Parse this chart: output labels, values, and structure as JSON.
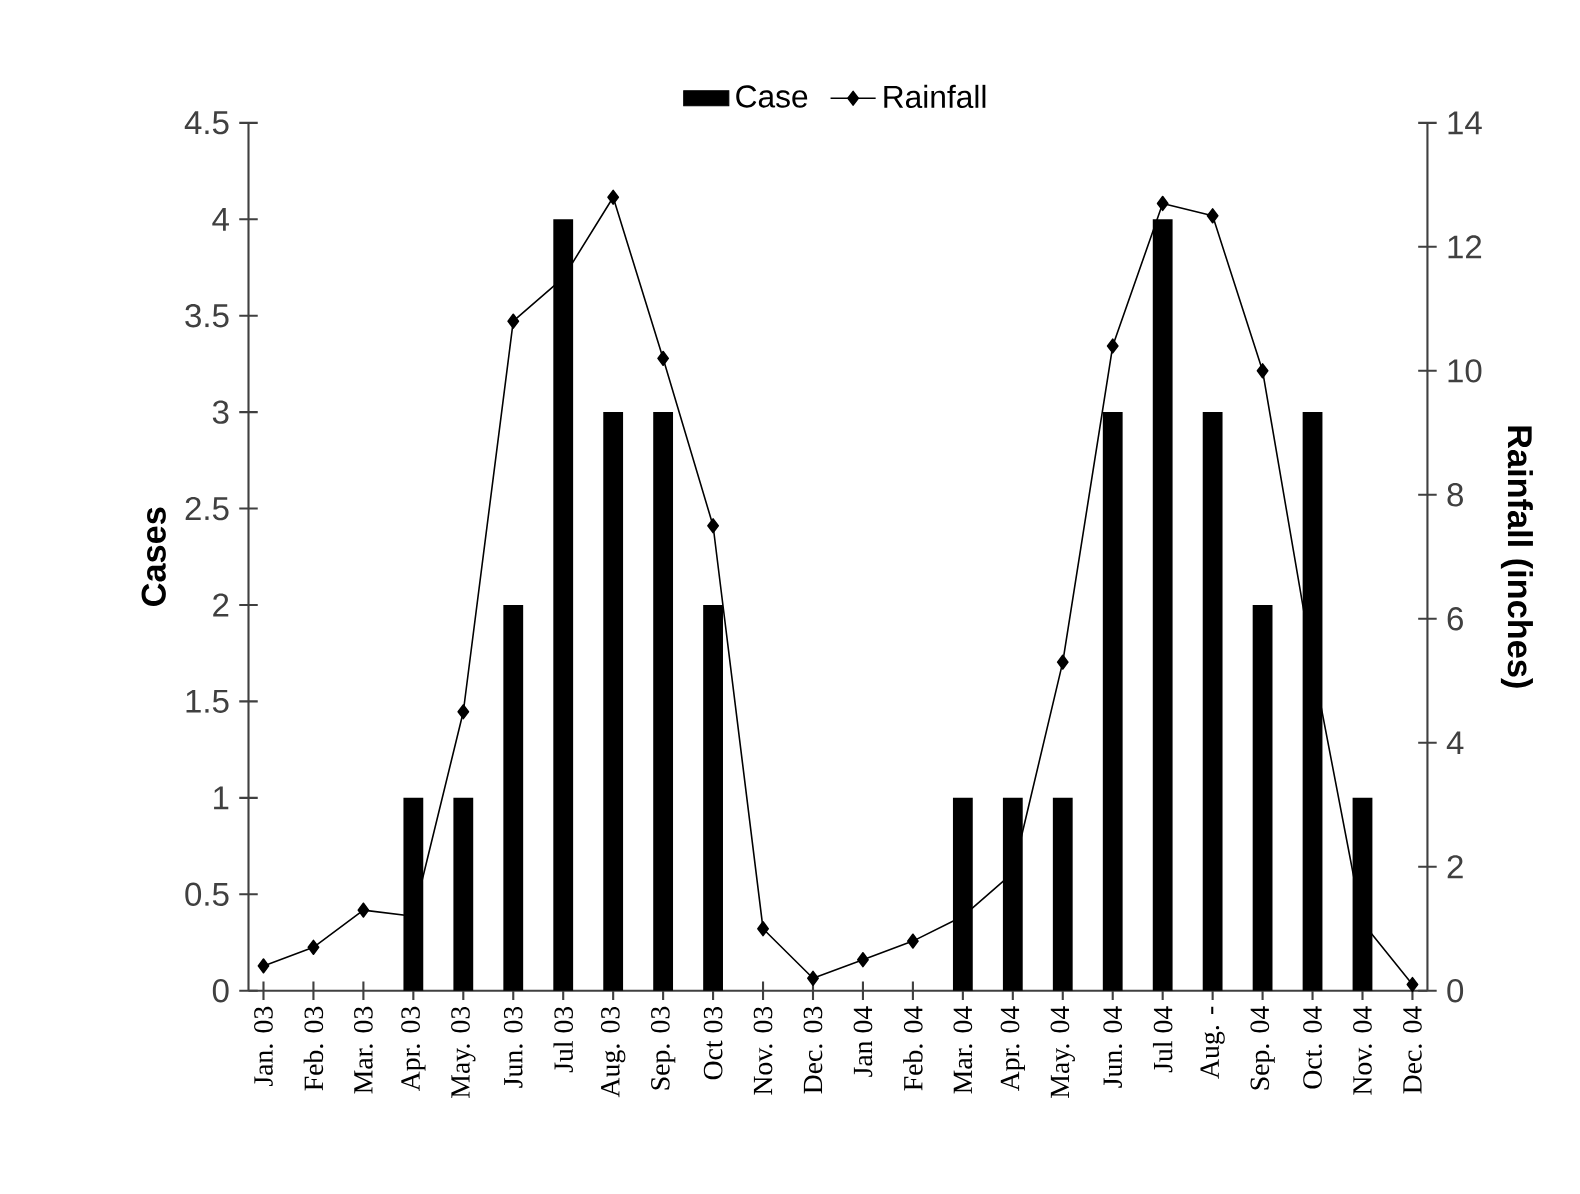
{
  "chart_data": {
    "type": "bar",
    "categories": [
      "Jan. 03",
      "Feb. 03",
      "Mar. 03",
      "Apr. 03",
      "May. 03",
      "Jun. 03",
      "Jul 03",
      "Aug. 03",
      "Sep. 03",
      "Oct 03",
      "Nov. 03",
      "Dec. 03",
      "Jan 04",
      "Feb. 04",
      "Mar. 04",
      "Apr. 04",
      "May. 04",
      "Jun. 04",
      "Jul 04",
      "Aug. -",
      "Sep. 04",
      "Oct. 04",
      "Nov. 04",
      "Dec. 04"
    ],
    "series": [
      {
        "name": "Case",
        "color": "#000000",
        "values": [
          0,
          0,
          0,
          1,
          1,
          2,
          4,
          3,
          3,
          2,
          0,
          0,
          0,
          0,
          1,
          1,
          1,
          3,
          4,
          3,
          2,
          3,
          1,
          0
        ]
      },
      {
        "name": "Rainfall",
        "type": "line",
        "axis": "y2",
        "color": "#000000",
        "marker": "diamond",
        "line_style": "solid",
        "values": [
          0.4,
          0.7,
          1.3,
          1.2,
          4.5,
          10.8,
          11.5,
          12.8,
          10.2,
          7.5,
          1.0,
          0.2,
          0.5,
          0.8,
          1.2,
          1.9,
          5.3,
          10.4,
          12.7,
          12.5,
          10.0,
          5.3,
          1.1,
          0.1
        ]
      }
    ],
    "ylabel": "Cases",
    "y2label": "Rainfall (inches)",
    "ylim": [
      0,
      4.5
    ],
    "yticks": [
      0,
      0.5,
      1,
      1.5,
      2,
      2.5,
      3,
      3.5,
      4,
      4.5
    ],
    "y2lim": [
      0,
      14
    ],
    "y2ticks": [
      0,
      2,
      4,
      6,
      8,
      10,
      12,
      14
    ],
    "legend": "top",
    "grid": false
  }
}
